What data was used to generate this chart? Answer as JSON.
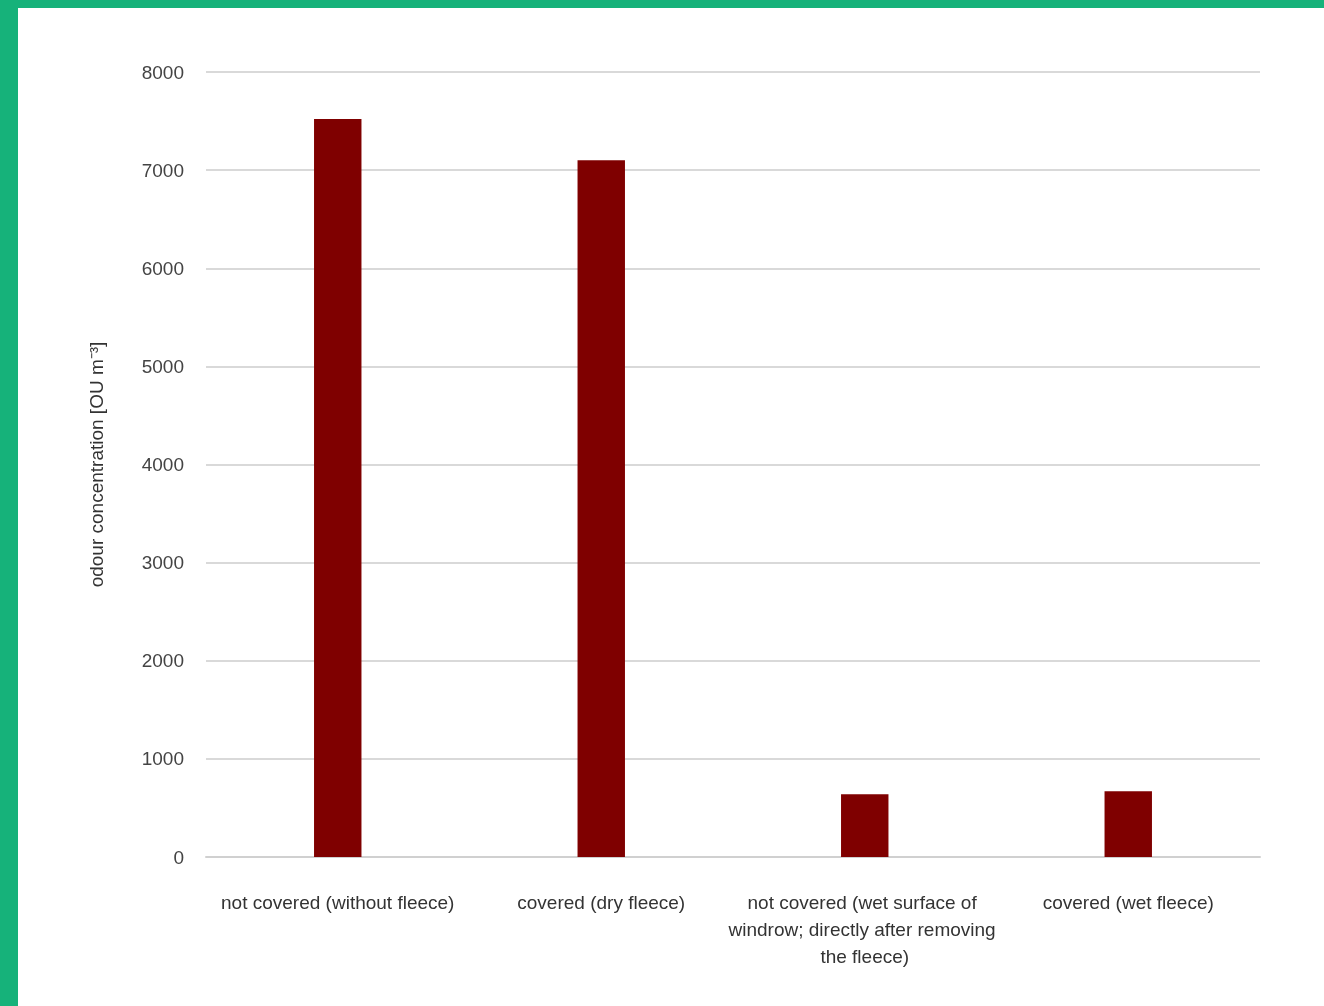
{
  "chart_data": {
    "type": "bar",
    "ylabel": "odour concentration [OU m⁻³]",
    "categories": [
      "not covered (without fleece)",
      "covered (dry fleece)",
      "not covered (wet surface of windrow; directly after removing the fleece)",
      "covered (wet fleece)"
    ],
    "values": [
      7520,
      7100,
      640,
      670
    ],
    "color": "#7f0000",
    "ylim": [
      0,
      8000
    ],
    "yticks": [
      0,
      1000,
      2000,
      3000,
      4000,
      5000,
      6000,
      7000,
      8000
    ],
    "grid": "y"
  }
}
